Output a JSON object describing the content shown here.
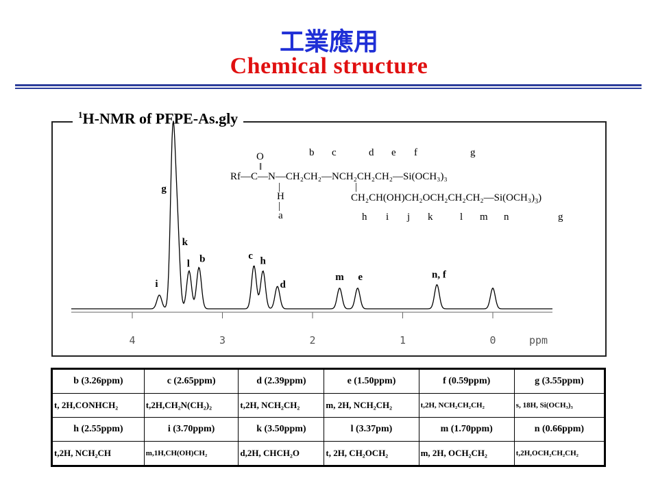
{
  "header": {
    "title_cn": "工業應用",
    "title_en": "Chemical  structure"
  },
  "spectrum": {
    "title_prefix": "H-NMR of PFPE-As.gly",
    "title_sup": "1",
    "x_unit": "ppm",
    "ticks": [
      "4",
      "3",
      "2",
      "1",
      "0"
    ]
  },
  "chart_data": {
    "type": "line",
    "title": "1H-NMR of PFPE-As.gly",
    "xlabel": "ppm",
    "xlim": [
      4.9,
      -0.65
    ],
    "x_reversed": true,
    "x_ticks": [
      4,
      3,
      2,
      1,
      0
    ],
    "peaks": [
      {
        "label": "i",
        "ppm": 3.7,
        "height": 0.08
      },
      {
        "label": "g",
        "ppm": 3.55,
        "height": 1.0
      },
      {
        "label": "k",
        "ppm": 3.5,
        "height": 0.45
      },
      {
        "label": "l",
        "ppm": 3.37,
        "height": 0.22
      },
      {
        "label": "b",
        "ppm": 3.26,
        "height": 0.24
      },
      {
        "label": "c",
        "ppm": 2.65,
        "height": 0.25
      },
      {
        "label": "h",
        "ppm": 2.55,
        "height": 0.22
      },
      {
        "label": "d",
        "ppm": 2.39,
        "height": 0.13
      },
      {
        "label": "m",
        "ppm": 1.7,
        "height": 0.12
      },
      {
        "label": "e",
        "ppm": 1.5,
        "height": 0.12
      },
      {
        "label": "n, f",
        "ppm": 0.62,
        "height": 0.14
      },
      {
        "label": "",
        "ppm": 0.0,
        "height": 0.12
      }
    ]
  },
  "structure": {
    "rf": "Rf",
    "c": "C",
    "n": "N",
    "o": "O",
    "h": "H",
    "a": "a",
    "chain1": "CH₂CH₂",
    "nch": "NCH₂CH₂CH₂",
    "si1": "Si(OCH₃)₃",
    "chain2": "CH₂CH(OH)CH₂OCH₂CH₂CH₂",
    "si2": "Si(OCH₃)",
    "labels_top": [
      "b",
      "c",
      "d",
      "e",
      "f",
      "g"
    ],
    "labels_bottom": [
      "h",
      "i",
      "j",
      "k",
      "l",
      "m",
      "n",
      "g"
    ]
  },
  "table": {
    "rows": [
      {
        "cells": [
          "b (3.26ppm)",
          "c (2.65ppm)",
          "d (2.39ppm)",
          "e (1.50ppm)",
          "f (0.59ppm)",
          "g (3.55ppm)"
        ]
      },
      {
        "cells": [
          "t, 2H,CONHCH₂",
          "t,2H,CH₂N(CH₂)₂",
          "t,2H, NCH₂CH₂",
          "m, 2H, NCH₂CH₂",
          "t,2H, NCH₂CH₂CH₂",
          "s, 18H, Si(OCH₃)₃"
        ]
      },
      {
        "cells": [
          "h (2.55ppm)",
          "i (3.70ppm)",
          "k (3.50ppm)",
          "l (3.37pm)",
          "m (1.70ppm)",
          "n (0.66ppm)"
        ]
      },
      {
        "cells": [
          "t,2H, NCH₂CH",
          "m,1H,CH(OH)CH₂",
          "d,2H, CHCH₂O",
          "t, 2H, CH₂OCH₂",
          "m, 2H, OCH₂CH₂",
          "t,2H,OCH₂CH₂CH₂"
        ]
      }
    ]
  }
}
